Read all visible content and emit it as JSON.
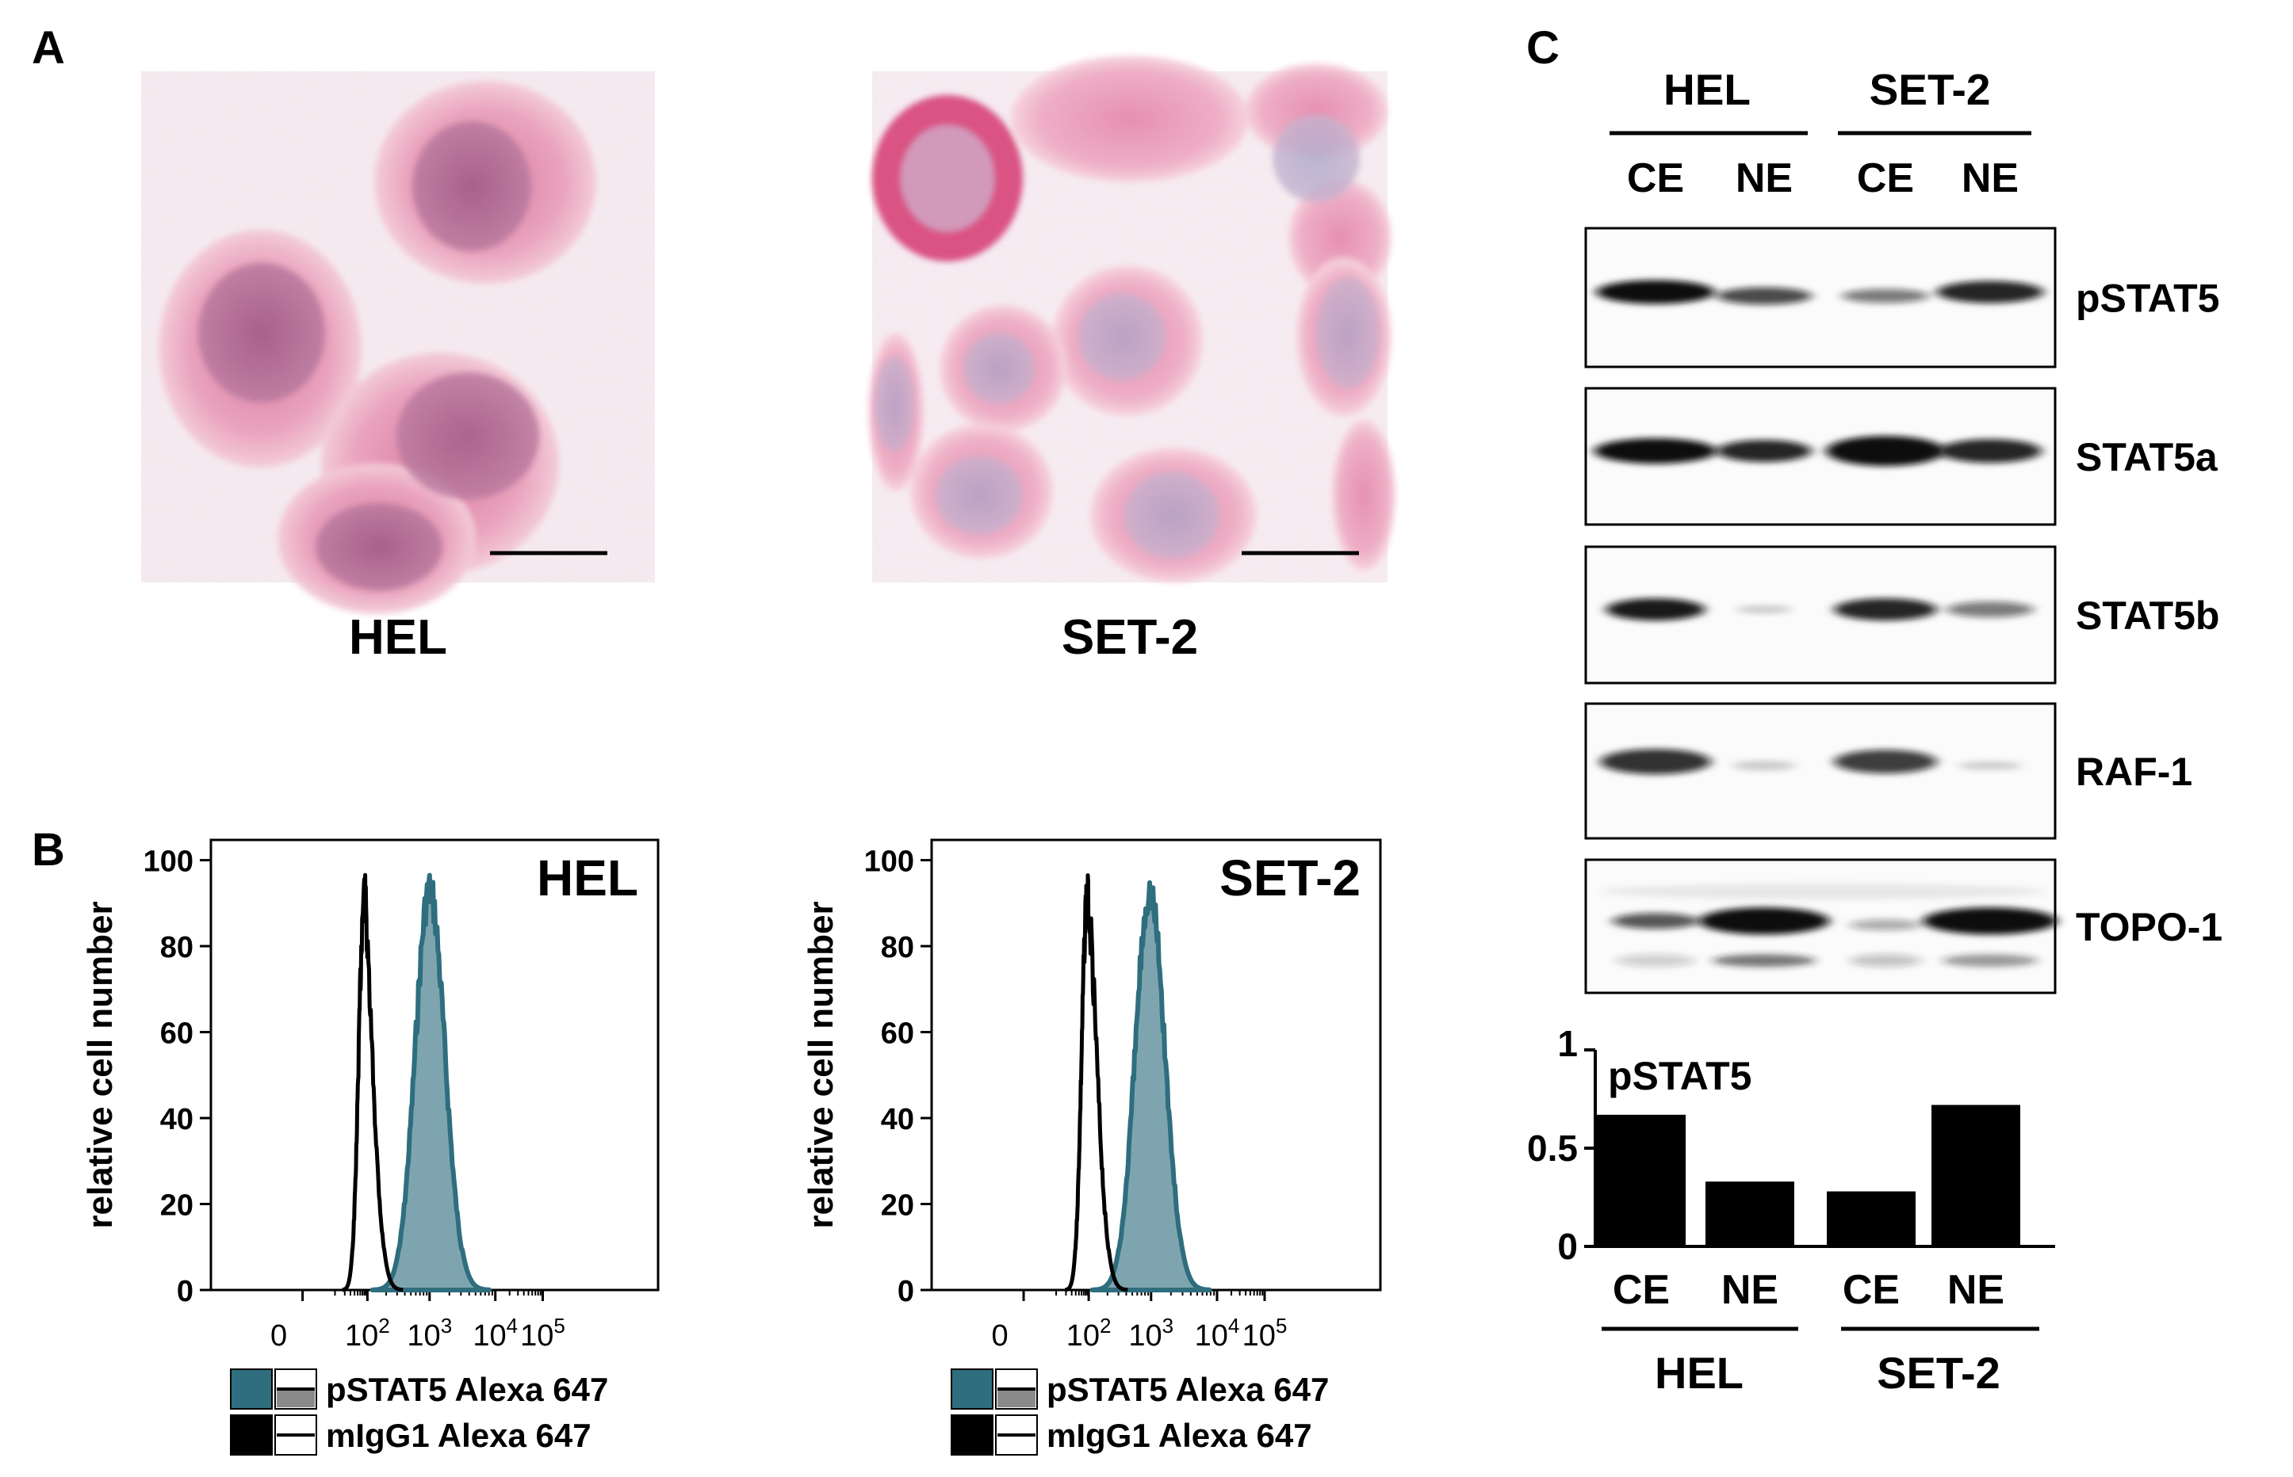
{
  "panel_labels": {
    "a": "A",
    "b": "B",
    "c": "C"
  },
  "panel_a": {
    "images": [
      {
        "caption": "HEL"
      },
      {
        "caption": "SET-2"
      }
    ]
  },
  "panel_b": {
    "ylabel": "relative cell number",
    "y_ticks": [
      "100",
      "80",
      "60",
      "40",
      "20",
      "0"
    ],
    "legend": [
      {
        "label": "pSTAT5 Alexa 647",
        "color": "#2e6e7e"
      },
      {
        "label": "mIgG1 Alexa 647",
        "color": "#000000"
      }
    ],
    "plots": [
      {
        "title": "HEL"
      },
      {
        "title": "SET-2"
      }
    ]
  },
  "panel_c": {
    "cell_lines": [
      "HEL",
      "SET-2"
    ],
    "fractions": [
      "CE",
      "NE",
      "CE",
      "NE"
    ],
    "blots": [
      "pSTAT5",
      "STAT5a",
      "STAT5b",
      "RAF-1",
      "TOPO-1"
    ]
  },
  "chart_data": [
    {
      "type": "area",
      "title": "HEL",
      "ylabel": "relative cell number",
      "xscale": "logicle",
      "x_ticks": [
        "0",
        "10^2",
        "10^3",
        "10^4",
        "10^5"
      ],
      "ylim": [
        0,
        100
      ],
      "series": [
        {
          "name": "pSTAT5 Alexa 647",
          "peak_x": 1000,
          "peak_y": 98
        },
        {
          "name": "mIgG1 Alexa 647",
          "peak_x": 80,
          "peak_y": 98
        }
      ]
    },
    {
      "type": "area",
      "title": "SET-2",
      "ylabel": "relative cell number",
      "xscale": "logicle",
      "x_ticks": [
        "0",
        "10^2",
        "10^3",
        "10^4",
        "10^5"
      ],
      "ylim": [
        0,
        100
      ],
      "series": [
        {
          "name": "pSTAT5 Alexa 647",
          "peak_x": 950,
          "peak_y": 98
        },
        {
          "name": "mIgG1 Alexa 647",
          "peak_x": 90,
          "peak_y": 98
        }
      ]
    },
    {
      "type": "bar",
      "title": "pSTAT5",
      "categories": [
        "CE",
        "NE",
        "CE",
        "NE"
      ],
      "groups": [
        "HEL",
        "SET-2"
      ],
      "values": [
        0.67,
        0.33,
        0.28,
        0.72
      ],
      "ylim": [
        0,
        1
      ],
      "y_ticks": [
        "1",
        "0.5",
        "0"
      ]
    }
  ]
}
